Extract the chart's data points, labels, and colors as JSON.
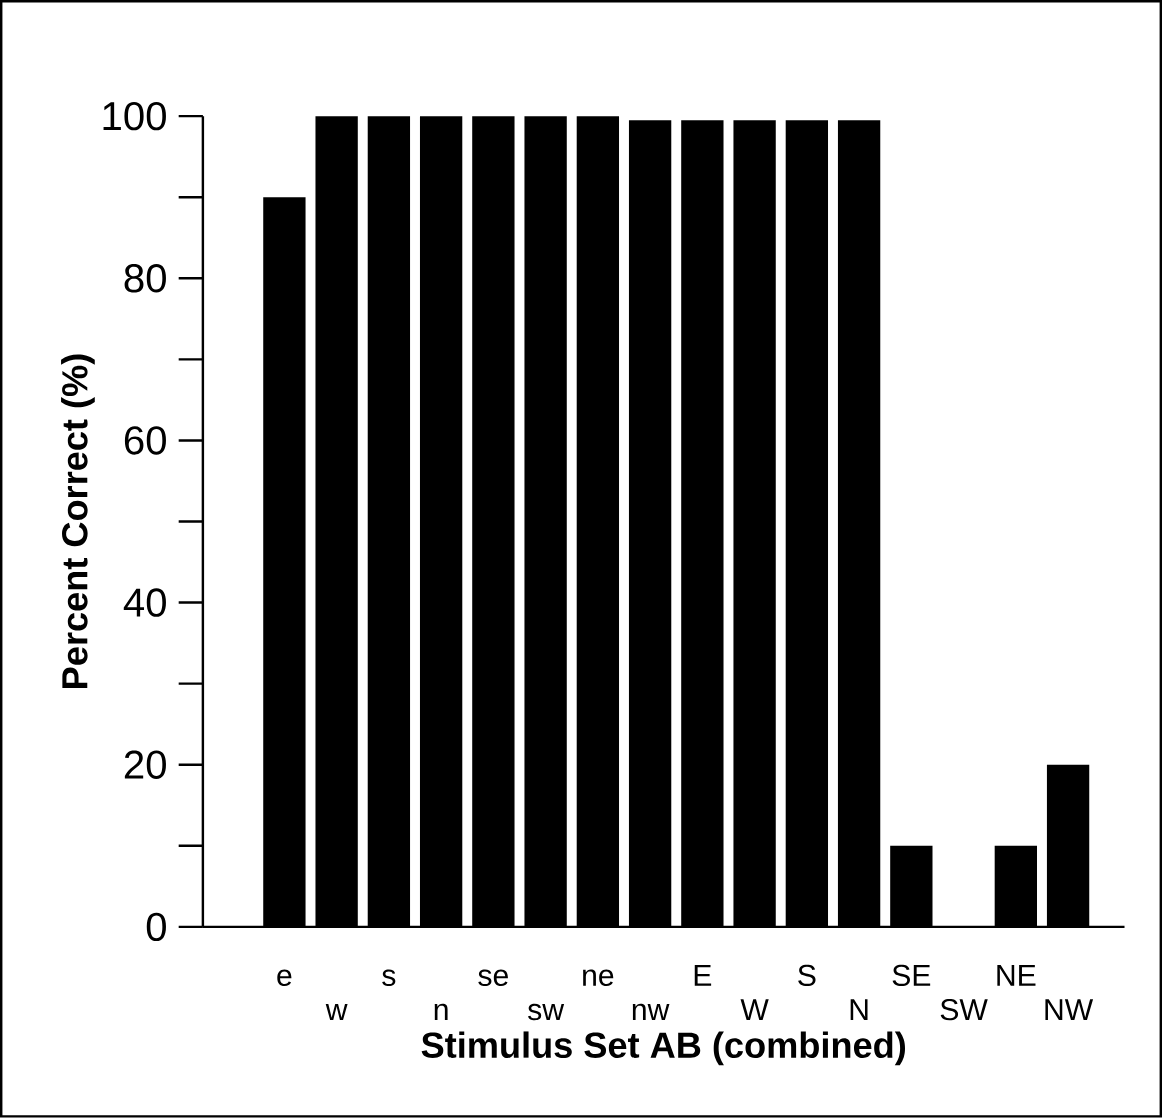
{
  "chart_data": {
    "type": "bar",
    "xlabel": "Stimulus Set AB (combined)",
    "ylabel": "Percent Correct (%)",
    "categories": [
      "e",
      "w",
      "s",
      "n",
      "se",
      "sw",
      "ne",
      "nw",
      "E",
      "W",
      "S",
      "N",
      "SE",
      "SW",
      "NE",
      "NW"
    ],
    "values": [
      90,
      100,
      100,
      100,
      100,
      100,
      100,
      99.5,
      99.5,
      99.5,
      99.5,
      99.5,
      10,
      0,
      10,
      20
    ],
    "color": "#000000",
    "ylim": [
      0,
      100
    ],
    "yticks": [
      0,
      {
        "value": 10,
        "label": null
      },
      20,
      {
        "value": 30,
        "label": null
      },
      40,
      {
        "value": 50,
        "label": null
      },
      60,
      {
        "value": 70,
        "label": null
      },
      80,
      {
        "value": 90,
        "label": null
      },
      100
    ],
    "grid": false
  }
}
